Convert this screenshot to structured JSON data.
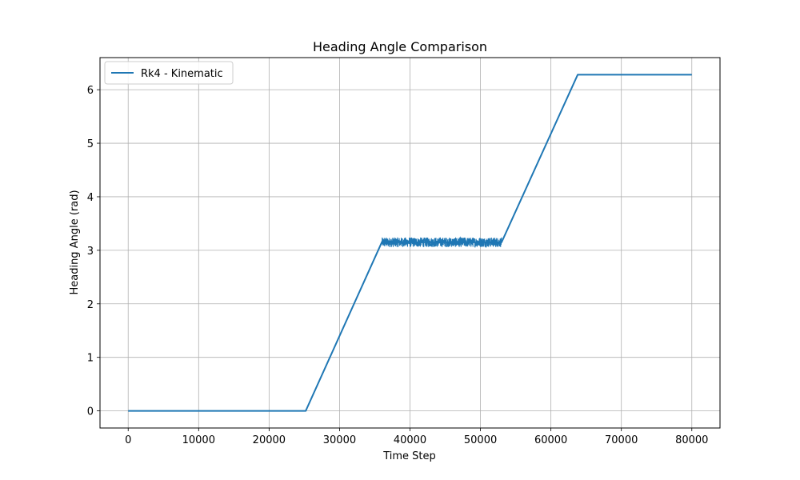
{
  "chart_data": {
    "type": "line",
    "title": "Heading Angle Comparison",
    "xlabel": "Time Step",
    "ylabel": "Heading Angle (rad)",
    "xlim": [
      -4000,
      84000
    ],
    "ylim": [
      -0.32,
      6.6
    ],
    "xticks": [
      0,
      10000,
      20000,
      30000,
      40000,
      50000,
      60000,
      70000,
      80000
    ],
    "xtick_labels": [
      "0",
      "10000",
      "20000",
      "30000",
      "40000",
      "50000",
      "60000",
      "70000",
      "80000"
    ],
    "yticks": [
      0,
      1,
      2,
      3,
      4,
      5,
      6
    ],
    "ytick_labels": [
      "0",
      "1",
      "2",
      "3",
      "4",
      "5",
      "6"
    ],
    "grid": true,
    "legend_position": "top-left",
    "series": [
      {
        "name": "Rk4 - Kinematic",
        "color": "#1f77b4",
        "x": [
          0,
          24800,
          25200,
          36000,
          53000,
          63800,
          80000
        ],
        "y": [
          0,
          0,
          0,
          3.15,
          3.15,
          6.28,
          6.28
        ],
        "noise": {
          "x_range": [
            36000,
            53000
          ],
          "center": 3.15,
          "amplitude": 0.09
        }
      }
    ]
  }
}
